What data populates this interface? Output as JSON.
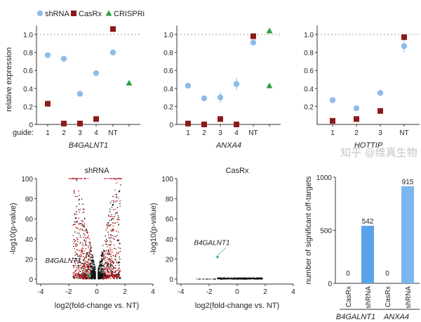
{
  "legend": [
    {
      "name": "shRNA",
      "shape": "circle",
      "color": "#8dbde8"
    },
    {
      "name": "CasRx",
      "shape": "square",
      "color": "#8b1a1a"
    },
    {
      "name": "CRISPRi",
      "shape": "triangle",
      "color": "#2ea043"
    }
  ],
  "chart_data": [
    {
      "type": "scatter",
      "title": "",
      "xlabel": "B4GALNT1",
      "ylabel": "relative expression",
      "guide_label": "guide:",
      "categories": [
        "1",
        "2",
        "3",
        "4",
        "NT",
        ""
      ],
      "ylim": [
        0,
        1.1
      ],
      "yticks": [
        "0",
        "0.2",
        "0.4",
        "0.6",
        "0.8",
        "1.0"
      ],
      "reference_line": 1.0,
      "series": [
        {
          "name": "shRNA",
          "values": [
            0.77,
            0.73,
            0.34,
            0.57,
            0.8,
            null
          ]
        },
        {
          "name": "CasRx",
          "values": [
            0.23,
            0.01,
            0.01,
            0.06,
            1.06,
            null
          ]
        },
        {
          "name": "CRISPRi",
          "values": [
            null,
            null,
            null,
            null,
            null,
            0.46
          ]
        }
      ]
    },
    {
      "type": "scatter",
      "title": "",
      "xlabel": "ANXA4",
      "ylabel": "",
      "categories": [
        "1",
        "2",
        "3",
        "4",
        "NT",
        ""
      ],
      "ylim": [
        0,
        1.1
      ],
      "yticks": [
        "0",
        "0.2",
        "0.4",
        "0.6",
        "0.8",
        "1.0"
      ],
      "reference_line": 1.0,
      "series": [
        {
          "name": "shRNA",
          "values": [
            0.43,
            0.29,
            0.3,
            0.45,
            0.91,
            null
          ],
          "errors": [
            0.01,
            0.01,
            0.06,
            0.07,
            0.02,
            null
          ]
        },
        {
          "name": "CasRx",
          "values": [
            0.01,
            0.0,
            0.06,
            0.0,
            0.98,
            null
          ]
        },
        {
          "name": "CRISPRi",
          "values": [
            null,
            null,
            null,
            null,
            null,
            1.04
          ],
          "extra": 0.43
        }
      ]
    },
    {
      "type": "scatter",
      "title": "",
      "xlabel": "HOTTIP",
      "ylabel": "",
      "categories": [
        "1",
        "2",
        "3",
        "NT"
      ],
      "ylim": [
        0,
        1.1
      ],
      "yticks": [
        "0.2",
        "0.4",
        "0.6",
        "0.8",
        "1.0"
      ],
      "reference_line": 1.0,
      "series": [
        {
          "name": "shRNA",
          "values": [
            0.27,
            0.18,
            0.35,
            0.87
          ],
          "errors": [
            0.01,
            0.01,
            0.02,
            0.07
          ]
        },
        {
          "name": "CasRx",
          "values": [
            0.04,
            0.06,
            0.15,
            0.97
          ]
        }
      ]
    },
    {
      "type": "scatter",
      "title": "shRNA",
      "xlabel": "log2(fold-change vs. NT)",
      "ylabel": "-log10(p-value)",
      "xlim": [
        -4,
        4
      ],
      "ylim": [
        0,
        100
      ],
      "xticks": [
        "-4",
        "-2",
        "0",
        "2",
        "4"
      ],
      "yticks": [
        "0",
        "20",
        "40",
        "60",
        "80",
        "100"
      ],
      "annotation": {
        "label": "B4GALNT1",
        "x": -0.5,
        "y": 3
      },
      "significant_color": "#c0141a",
      "nonsignificant_color": "#111111"
    },
    {
      "type": "scatter",
      "title": "CasRx",
      "xlabel": "log2(fold-change vs. NT)",
      "ylabel": "-log10(p-value)",
      "xlim": [
        -4,
        4
      ],
      "ylim": [
        0,
        100
      ],
      "xticks": [
        "-4",
        "-2",
        "0",
        "2",
        "4"
      ],
      "yticks": [
        "0",
        "20",
        "40",
        "60",
        "80",
        "100"
      ],
      "annotation": {
        "label": "B4GALNT1",
        "x": -1.4,
        "y": 22
      }
    },
    {
      "type": "bar",
      "title": "",
      "ylabel": "number of significant off-targets",
      "ylim": [
        0,
        1000
      ],
      "yticks": [
        "0",
        "500",
        "1000"
      ],
      "categories": [
        "CasRx",
        "shRNA",
        "CasRx",
        "shRNA"
      ],
      "groups": [
        "B4GALNT1",
        "ANXA4"
      ],
      "values": [
        0,
        542,
        0,
        915
      ],
      "colors": [
        "#5aa2ea",
        "#5aa2ea",
        "#7cb6f0",
        "#7cb6f0"
      ]
    }
  ],
  "watermark": "知乎 @维真生物"
}
